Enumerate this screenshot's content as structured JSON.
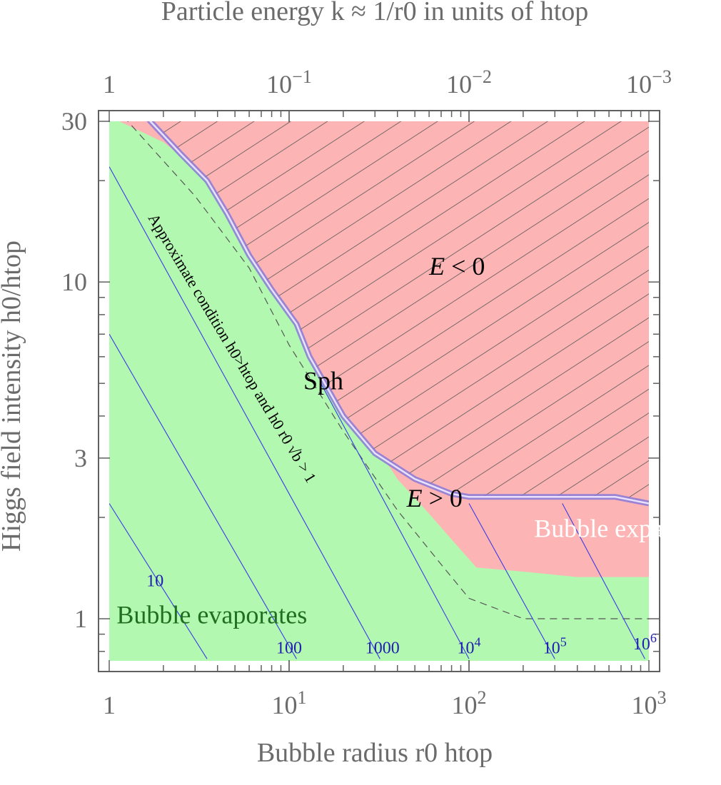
{
  "chart_data": {
    "type": "contour-region",
    "title": "",
    "xlabel": "Bubble radius r0 htop",
    "ylabel": "Higgs field intensity h0/htop",
    "top_label": "Particle energy k ≈ 1/r0 in units of htop",
    "xscale": "log",
    "yscale": "log",
    "xlim": [
      1,
      1000
    ],
    "ylim": [
      0.75,
      30
    ],
    "x_ticks": [
      {
        "value": 1,
        "label": "1"
      },
      {
        "value": 10,
        "label": "10^1"
      },
      {
        "value": 100,
        "label": "10^2"
      },
      {
        "value": 1000,
        "label": "10^3"
      }
    ],
    "y_ticks": [
      {
        "value": 1,
        "label": "1"
      },
      {
        "value": 3,
        "label": "3"
      },
      {
        "value": 10,
        "label": "10"
      },
      {
        "value": 30,
        "label": "30"
      }
    ],
    "top_ticks": [
      {
        "value": 1,
        "label": "1"
      },
      {
        "value": 10,
        "label": "10^-1"
      },
      {
        "value": 100,
        "label": "10^-2"
      },
      {
        "value": 1000,
        "label": "10^-3"
      }
    ],
    "regions": [
      {
        "name": "Bubble evaporates",
        "color": "#b3f8b1",
        "label_at": [
          1.1,
          0.97
        ],
        "text_color": "#1f6f1f"
      },
      {
        "name": "Bubble expands",
        "color": "#fdb4b4",
        "label_at": [
          230,
          1.75
        ],
        "text_color": "#ffffff"
      },
      {
        "name": "E < 0",
        "hatched": true,
        "label_at": [
          60,
          10.5
        ],
        "text_color": "#000000"
      },
      {
        "name": "E > 0",
        "label_at": [
          45,
          2.15
        ],
        "text_color": "#000000"
      },
      {
        "name": "Sph",
        "label_at": [
          12,
          4.8
        ],
        "text_color": "#000000"
      }
    ],
    "boundary_expands": [
      [
        1,
        31
      ],
      [
        2,
        26
      ],
      [
        3,
        22
      ],
      [
        5,
        16
      ],
      [
        8,
        11
      ],
      [
        12,
        7.5
      ],
      [
        18,
        5.0
      ],
      [
        27,
        3.6
      ],
      [
        40,
        2.6
      ],
      [
        60,
        2.05
      ],
      [
        80,
        1.72
      ],
      [
        110,
        1.42
      ],
      [
        200,
        1.38
      ],
      [
        400,
        1.33
      ],
      [
        1000,
        1.33
      ]
    ],
    "boundary_negative_energy": [
      [
        1.6,
        31
      ],
      [
        2.5,
        24
      ],
      [
        3.5,
        20
      ],
      [
        4.5,
        16
      ],
      [
        6,
        12
      ],
      [
        8,
        9.5
      ],
      [
        11,
        7.5
      ],
      [
        13,
        6.0
      ],
      [
        20,
        4.0
      ],
      [
        30,
        3.1
      ],
      [
        50,
        2.6
      ],
      [
        80,
        2.35
      ],
      [
        100,
        2.3
      ],
      [
        200,
        2.3
      ],
      [
        650,
        2.3
      ],
      [
        1000,
        2.2
      ]
    ],
    "dashed_approx_condition": [
      [
        1.2,
        31
      ],
      [
        3,
        18
      ],
      [
        6,
        11
      ],
      [
        10,
        6.5
      ],
      [
        20,
        3.6
      ],
      [
        40,
        2.1
      ],
      [
        70,
        1.45
      ],
      [
        100,
        1.15
      ],
      [
        200,
        1.0
      ],
      [
        1000,
        1.0
      ]
    ],
    "contours": [
      {
        "label": "10",
        "points": [
          [
            1,
            2.2
          ],
          [
            3.5,
            0.76
          ]
        ],
        "label_at": [
          1.8,
          1.25
        ]
      },
      {
        "label": "100",
        "points": [
          [
            1,
            7.0
          ],
          [
            11,
            0.76
          ]
        ],
        "label_at": [
          10,
          0.79
        ]
      },
      {
        "label": "1000",
        "points": [
          [
            1,
            22
          ],
          [
            32,
            0.76
          ]
        ],
        "label_at": [
          33,
          0.79
        ]
      },
      {
        "label": "10^4",
        "points": [
          [
            15,
            5.0
          ],
          [
            100,
            0.76
          ]
        ],
        "label_at": [
          100,
          0.79
        ]
      },
      {
        "label": "10^5",
        "points": [
          [
            100,
            2.2
          ],
          [
            300,
            0.76
          ]
        ],
        "label_at": [
          300,
          0.79
        ]
      },
      {
        "label": "10^6",
        "points": [
          [
            330,
            2.2
          ],
          [
            950,
            0.76
          ]
        ],
        "label_at": [
          950,
          0.81
        ]
      }
    ],
    "annotation": "Approximate condition h0>htop and h0 r0 √b > 1"
  }
}
